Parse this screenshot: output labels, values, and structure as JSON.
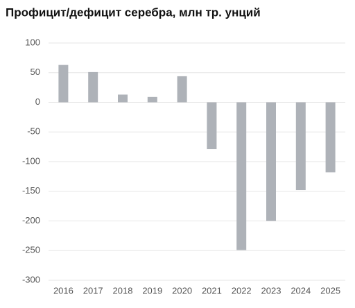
{
  "chart_data": {
    "type": "bar",
    "title": "Профицит/дефицит серебра, млн тр. унций",
    "categories": [
      "2016",
      "2017",
      "2018",
      "2019",
      "2020",
      "2021",
      "2022",
      "2023",
      "2024",
      "2025"
    ],
    "values": [
      63,
      51,
      13,
      9,
      44,
      -79,
      -249,
      -200,
      -148,
      -118
    ],
    "color": "#aeb2b8",
    "ylim": [
      -300,
      100
    ],
    "yticks": [
      -300,
      -250,
      -200,
      -150,
      -100,
      -50,
      0,
      50,
      100
    ],
    "grid": true
  }
}
